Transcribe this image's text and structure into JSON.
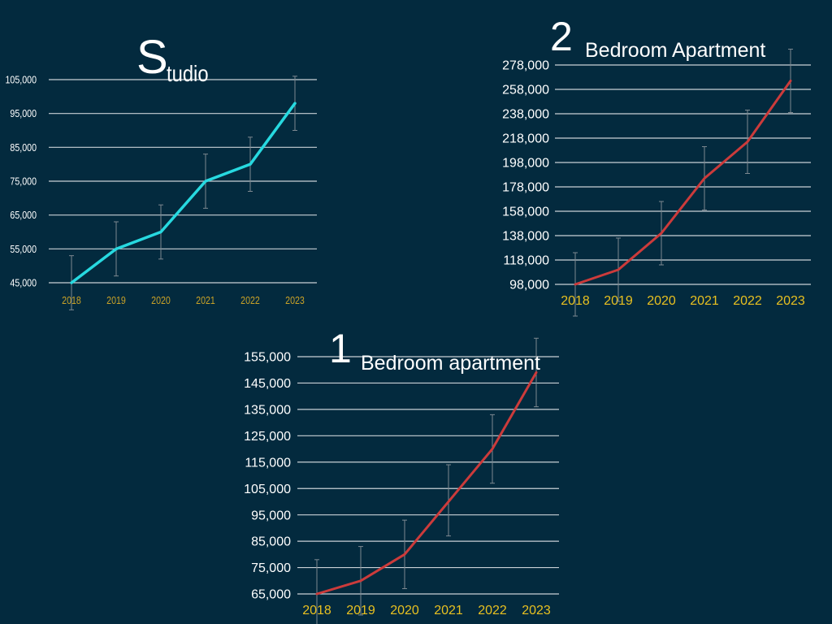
{
  "slide": {
    "background": "#032a3e"
  },
  "chart_data": [
    {
      "type": "line",
      "title_letter": "S",
      "title_rest": "tudio",
      "categories": [
        "2018",
        "2019",
        "2020",
        "2021",
        "2022",
        "2023"
      ],
      "series": [
        {
          "values": [
            45000,
            55000,
            60000,
            75000,
            80000,
            98000
          ],
          "error_low": [
            37000,
            47000,
            52000,
            67000,
            72000,
            90000
          ],
          "error_high": [
            53000,
            63000,
            68000,
            83000,
            88000,
            106000
          ],
          "color": "#27d9e0"
        }
      ],
      "ylim": [
        45000,
        105000
      ],
      "yticks": [
        "45,000",
        "55,000",
        "65,000",
        "75,000",
        "85,000",
        "95,000",
        "105,000"
      ],
      "ytick_values": [
        45000,
        55000,
        65000,
        75000,
        85000,
        95000,
        105000
      ],
      "grid": true,
      "ytick_color": "#ffffff",
      "xtick_color": "#c9a227"
    },
    {
      "type": "line",
      "title_letter": "2",
      "title_rest": "Bedroom Apartment",
      "categories": [
        "2018",
        "2019",
        "2020",
        "2021",
        "2022",
        "2023"
      ],
      "series": [
        {
          "values": [
            98000,
            110000,
            140000,
            185000,
            215000,
            265000
          ],
          "error_low": [
            72000,
            84000,
            114000,
            159000,
            189000,
            239000
          ],
          "error_high": [
            124000,
            136000,
            166000,
            211000,
            241000,
            291000
          ],
          "color": "#cc3b3b"
        }
      ],
      "ylim": [
        98000,
        278000
      ],
      "yticks": [
        "98,000",
        "118,000",
        "138,000",
        "158,000",
        "178,000",
        "198,000",
        "218,000",
        "238,000",
        "258,000",
        "278,000"
      ],
      "ytick_values": [
        98000,
        118000,
        138000,
        158000,
        178000,
        198000,
        218000,
        238000,
        258000,
        278000
      ],
      "grid": true,
      "ytick_color": "#ffffff",
      "xtick_color": "#e8c020"
    },
    {
      "type": "line",
      "title_letter": "1",
      "title_rest": "Bedroom apartment",
      "categories": [
        "2018",
        "2019",
        "2020",
        "2021",
        "2022",
        "2023"
      ],
      "series": [
        {
          "values": [
            65000,
            70000,
            80000,
            100000,
            120000,
            149000
          ],
          "error_low": [
            52000,
            57000,
            67000,
            87000,
            107000,
            136000
          ],
          "error_high": [
            78000,
            83000,
            93000,
            114000,
            133000,
            162000
          ],
          "color": "#cc3b3b"
        }
      ],
      "ylim": [
        65000,
        155000
      ],
      "yticks": [
        "65,000",
        "75,000",
        "85,000",
        "95,000",
        "105,000",
        "115,000",
        "125,000",
        "135,000",
        "145,000",
        "155,000"
      ],
      "ytick_values": [
        65000,
        75000,
        85000,
        95000,
        105000,
        115000,
        125000,
        135000,
        145000,
        155000
      ],
      "grid": true,
      "ytick_color": "#ffffff",
      "xtick_color": "#e8c020"
    }
  ]
}
